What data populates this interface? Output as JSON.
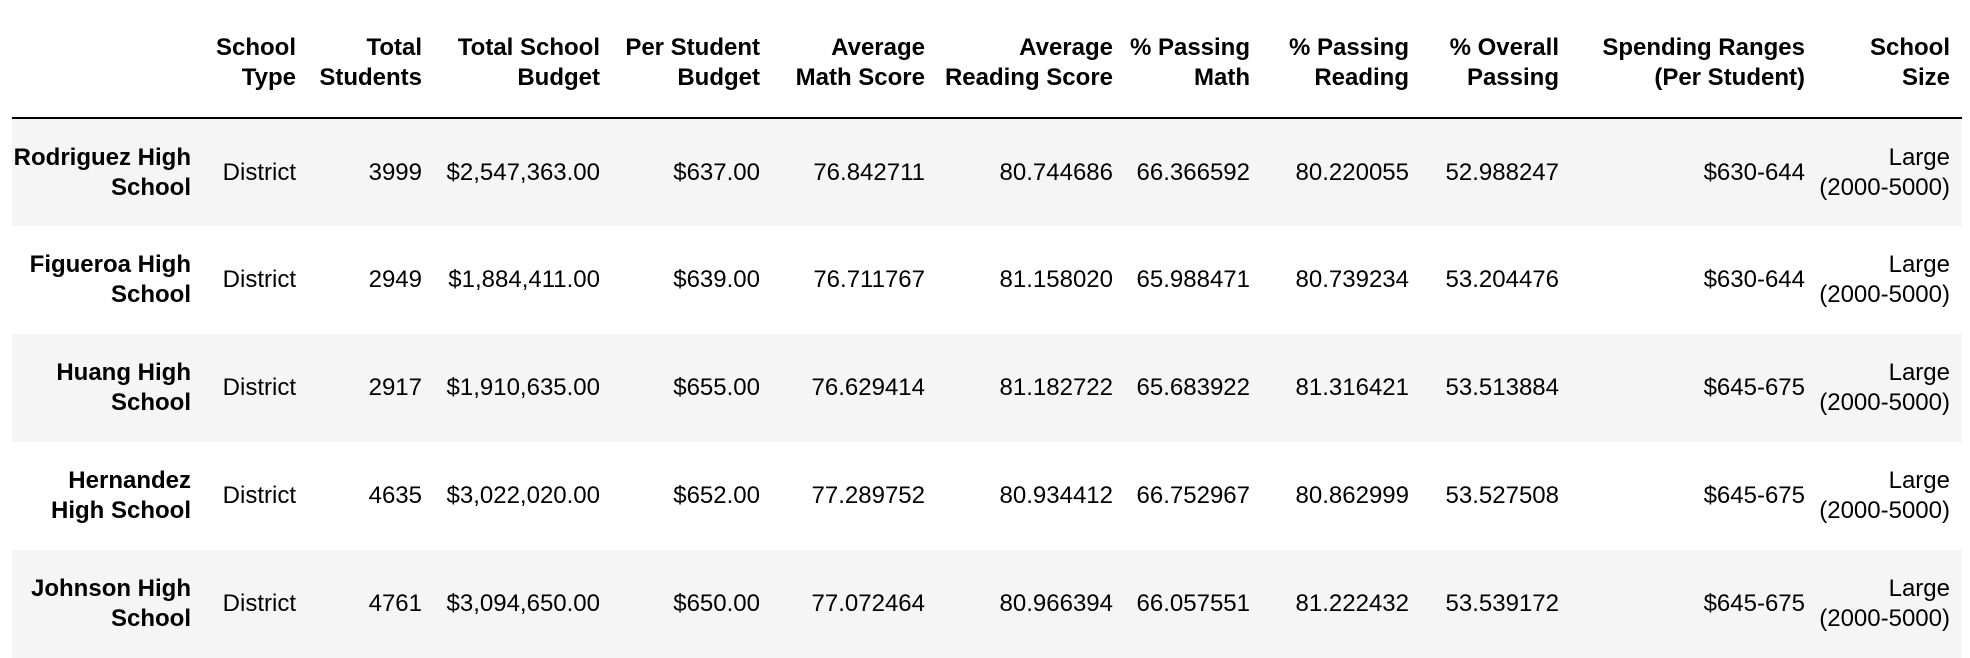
{
  "table": {
    "columns": [
      "",
      "School Type",
      "Total Students",
      "Total School Budget",
      "Per Student Budget",
      "Average Math Score",
      "Average Reading Score",
      "% Passing Math",
      "% Passing Reading",
      "% Overall Passing",
      "Spending Ranges (Per Student)",
      "School Size"
    ],
    "rows": [
      {
        "school": "Rodriguez High School",
        "type": "District",
        "students": "3999",
        "budget": "$2,547,363.00",
        "per_student": "$637.00",
        "math": "76.842711",
        "reading": "80.744686",
        "pass_math": "66.366592",
        "pass_reading": "80.220055",
        "overall": "52.988247",
        "spending": "$630-644",
        "size": "Large (2000-5000)"
      },
      {
        "school": "Figueroa High School",
        "type": "District",
        "students": "2949",
        "budget": "$1,884,411.00",
        "per_student": "$639.00",
        "math": "76.711767",
        "reading": "81.158020",
        "pass_math": "65.988471",
        "pass_reading": "80.739234",
        "overall": "53.204476",
        "spending": "$630-644",
        "size": "Large (2000-5000)"
      },
      {
        "school": "Huang High School",
        "type": "District",
        "students": "2917",
        "budget": "$1,910,635.00",
        "per_student": "$655.00",
        "math": "76.629414",
        "reading": "81.182722",
        "pass_math": "65.683922",
        "pass_reading": "81.316421",
        "overall": "53.513884",
        "spending": "$645-675",
        "size": "Large (2000-5000)"
      },
      {
        "school": "Hernandez High School",
        "type": "District",
        "students": "4635",
        "budget": "$3,022,020.00",
        "per_student": "$652.00",
        "math": "77.289752",
        "reading": "80.934412",
        "pass_math": "66.752967",
        "pass_reading": "80.862999",
        "overall": "53.527508",
        "spending": "$645-675",
        "size": "Large (2000-5000)"
      },
      {
        "school": "Johnson High School",
        "type": "District",
        "students": "4761",
        "budget": "$3,094,650.00",
        "per_student": "$650.00",
        "math": "77.072464",
        "reading": "80.966394",
        "pass_math": "66.057551",
        "pass_reading": "81.222432",
        "overall": "53.539172",
        "spending": "$645-675",
        "size": "Large (2000-5000)"
      }
    ]
  }
}
